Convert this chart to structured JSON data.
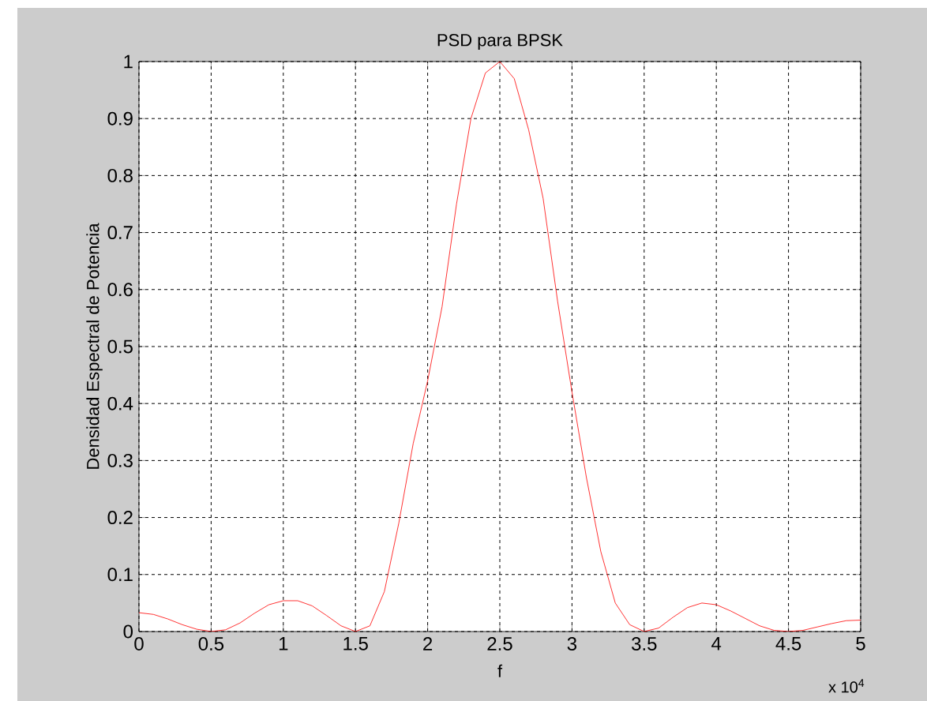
{
  "chart_data": {
    "type": "line",
    "title": "PSD para BPSK",
    "xlabel": "f",
    "ylabel": "Densidad Espectral de Potencia",
    "x": [
      0,
      0.1,
      0.2,
      0.3,
      0.4,
      0.5,
      0.6,
      0.7,
      0.8,
      0.9,
      1.0,
      1.1,
      1.2,
      1.3,
      1.4,
      1.5,
      1.6,
      1.7,
      1.8,
      1.9,
      2.0,
      2.1,
      2.2,
      2.3,
      2.4,
      2.5,
      2.6,
      2.7,
      2.8,
      2.9,
      3.0,
      3.1,
      3.2,
      3.3,
      3.4,
      3.5,
      3.6,
      3.7,
      3.8,
      3.9,
      4.0,
      4.1,
      4.2,
      4.3,
      4.4,
      4.5,
      4.6,
      4.7,
      4.8,
      4.9,
      5.0
    ],
    "values": [
      0.033,
      0.03,
      0.022,
      0.012,
      0.004,
      0.0,
      0.003,
      0.015,
      0.032,
      0.047,
      0.054,
      0.054,
      0.045,
      0.028,
      0.01,
      0.0,
      0.01,
      0.07,
      0.19,
      0.33,
      0.44,
      0.57,
      0.75,
      0.9,
      0.98,
      1.0,
      0.97,
      0.88,
      0.76,
      0.58,
      0.42,
      0.27,
      0.14,
      0.05,
      0.012,
      0.0,
      0.006,
      0.025,
      0.042,
      0.05,
      0.047,
      0.036,
      0.023,
      0.01,
      0.002,
      0.0,
      0.002,
      0.008,
      0.014,
      0.019,
      0.02
    ],
    "color": "#ff0000",
    "xlim": [
      0,
      5
    ],
    "ylim": [
      0,
      1
    ],
    "xticks": [
      0,
      0.5,
      1,
      1.5,
      2,
      2.5,
      3,
      3.5,
      4,
      4.5,
      5
    ],
    "yticks": [
      0,
      0.1,
      0.2,
      0.3,
      0.4,
      0.5,
      0.6,
      0.7,
      0.8,
      0.9,
      1
    ],
    "grid": true,
    "line_style": "solid",
    "annotations": [
      "x 10$^{4}$"
    ]
  }
}
